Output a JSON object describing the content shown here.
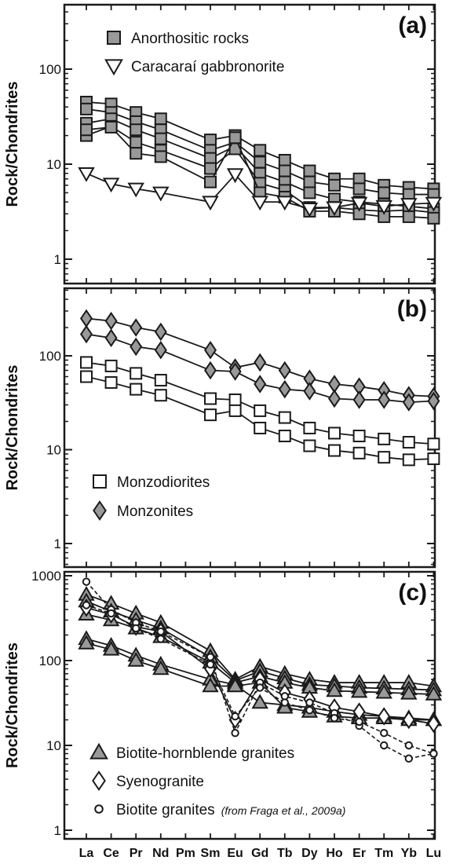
{
  "chart_data": [
    {
      "type": "line",
      "panel_label": "(a)",
      "ylabel": "Rock/Chondrites",
      "y_scale": "log",
      "ylim": [
        0.8,
        500
      ],
      "y_ticks": [
        {
          "value": 1,
          "label": "1"
        },
        {
          "value": 10,
          "label": "10"
        },
        {
          "value": 100,
          "label": "100"
        }
      ],
      "x_ticks_labeled": false,
      "legend_position": "top-left",
      "groups": [
        {
          "name": "Anorthositic rocks",
          "marker": "square",
          "fill": "#999999",
          "stroke": "#1a1a1a",
          "dashed": false,
          "series": [
            {
              "x": [
                "La",
                "Ce",
                "Pr",
                "Nd",
                "Sm",
                "Eu",
                "Gd",
                "Tb",
                "Dy",
                "Ho",
                "Er",
                "Tm",
                "Yb",
                "Lu"
              ],
              "values": [
                45,
                43,
                35,
                30,
                18,
                20,
                14,
                11,
                8.5,
                7,
                7,
                6,
                5.7,
                5.5
              ]
            },
            {
              "x": [
                "La",
                "Ce",
                "Pr",
                "Nd",
                "Sm",
                "Eu",
                "Gd",
                "Tb",
                "Dy",
                "Ho",
                "Er",
                "Tm",
                "Yb",
                "Lu"
              ],
              "values": [
                38,
                35,
                28,
                23,
                14,
                17,
                10.5,
                8.5,
                6.5,
                6,
                5.5,
                5,
                4.8,
                4.8
              ]
            },
            {
              "x": [
                "La",
                "Ce",
                "Pr",
                "Nd",
                "Sm",
                "Eu",
                "Gd",
                "Tb",
                "Dy",
                "Ho",
                "Er",
                "Tm",
                "Yb",
                "Lu"
              ],
              "values": [
                27,
                30,
                23,
                18.5,
                11.5,
                15.5,
                8,
                6.5,
                5,
                4.3,
                4,
                3.8,
                3.6,
                3.4
              ]
            },
            {
              "x": [
                "La",
                "Ce",
                "Pr",
                "Nd",
                "Sm",
                "Eu",
                "Gd",
                "Tb",
                "Dy",
                "Ho",
                "Er",
                "Tm",
                "Yb",
                "Lu"
              ],
              "values": [
                20,
                25,
                17,
                14,
                9,
                14.5,
                6.3,
                5.3,
                3.5,
                3.5,
                3.3,
                3.2,
                3.3,
                3.1
              ]
            },
            {
              "x": [
                "La",
                "Ce",
                "Pr",
                "Nd",
                "Sm",
                "Eu",
                "Gd",
                "Tb",
                "Dy",
                "Ho",
                "Er",
                "Tm",
                "Yb",
                "Lu"
              ],
              "values": [
                23,
                24.5,
                13,
                12,
                6.5,
                19,
                5,
                4.5,
                3.2,
                3.2,
                3,
                2.8,
                2.8,
                2.7
              ]
            }
          ]
        },
        {
          "name": "Caracaraí gabbronorite",
          "marker": "triangle-down",
          "fill": "#ffffff",
          "stroke": "#1a1a1a",
          "dashed": false,
          "series": [
            {
              "x": [
                "La",
                "Ce",
                "Pr",
                "Nd",
                "Sm",
                "Eu",
                "Gd",
                "Tb",
                "Dy",
                "Ho",
                "Er",
                "Tm",
                "Yb",
                "Lu"
              ],
              "values": [
                8,
                6.2,
                5.5,
                5,
                4,
                7.8,
                4,
                4,
                3.4,
                3.5,
                3.9,
                3.6,
                3.8,
                3.9
              ]
            }
          ]
        }
      ]
    },
    {
      "type": "line",
      "panel_label": "(b)",
      "ylabel": "Rock/Chondrites",
      "y_scale": "log",
      "ylim": [
        0.8,
        350
      ],
      "y_ticks": [
        {
          "value": 1,
          "label": "1"
        },
        {
          "value": 10,
          "label": "10"
        },
        {
          "value": 100,
          "label": "100"
        }
      ],
      "x_ticks_labeled": false,
      "legend_position": "bottom-left",
      "groups": [
        {
          "name": "Monzodiorites",
          "marker": "square",
          "fill": "#ffffff",
          "stroke": "#1a1a1a",
          "dashed": false,
          "series": [
            {
              "x": [
                "La",
                "Ce",
                "Pr",
                "Nd",
                "Sm",
                "Eu",
                "Gd",
                "Tb",
                "Dy",
                "Ho",
                "Er",
                "Tm",
                "Yb",
                "Lu"
              ],
              "values": [
                85,
                78,
                65,
                55,
                35,
                34,
                26,
                22,
                17,
                15,
                14,
                13,
                12,
                11.5
              ]
            },
            {
              "x": [
                "La",
                "Ce",
                "Pr",
                "Nd",
                "Sm",
                "Eu",
                "Gd",
                "Tb",
                "Dy",
                "Ho",
                "Er",
                "Tm",
                "Yb",
                "Lu"
              ],
              "values": [
                60,
                52,
                44,
                38,
                23.5,
                26,
                17,
                14,
                11,
                9.8,
                9.2,
                8.3,
                7.8,
                8
              ]
            }
          ]
        },
        {
          "name": "Monzonites",
          "marker": "diamond",
          "fill": "#999999",
          "stroke": "#1a1a1a",
          "dashed": false,
          "series": [
            {
              "x": [
                "La",
                "Ce",
                "Pr",
                "Nd",
                "Sm",
                "Eu",
                "Gd",
                "Tb",
                "Dy",
                "Ho",
                "Er",
                "Tm",
                "Yb",
                "Lu"
              ],
              "values": [
                250,
                235,
                200,
                180,
                115,
                75,
                85,
                70,
                57,
                50,
                47,
                43,
                38,
                37
              ]
            },
            {
              "x": [
                "La",
                "Ce",
                "Pr",
                "Nd",
                "Sm",
                "Eu",
                "Gd",
                "Tb",
                "Dy",
                "Ho",
                "Er",
                "Tm",
                "Yb",
                "Lu"
              ],
              "values": [
                170,
                155,
                125,
                115,
                70,
                68,
                50,
                44,
                42,
                35,
                34,
                34,
                32,
                33
              ]
            }
          ]
        }
      ]
    },
    {
      "type": "line",
      "panel_label": "(c)",
      "ylabel": "Rock/Chondrites",
      "y_scale": "log",
      "ylim": [
        0.8,
        1000
      ],
      "y_ticks": [
        {
          "value": 1,
          "label": "1"
        },
        {
          "value": 10,
          "label": "10"
        },
        {
          "value": 100,
          "label": "100"
        },
        {
          "value": 1000,
          "label": "1000"
        }
      ],
      "x_ticks_labeled": true,
      "categories": [
        "La",
        "Ce",
        "Pr",
        "Nd",
        "Pm",
        "Sm",
        "Eu",
        "Gd",
        "Tb",
        "Dy",
        "Ho",
        "Er",
        "Tm",
        "Yb",
        "Lu"
      ],
      "legend_position": "bottom-left",
      "groups": [
        {
          "name": "Biotite-hornblende granites",
          "marker": "triangle-up",
          "fill": "#999999",
          "stroke": "#1a1a1a",
          "dashed": false,
          "series": [
            {
              "x": [
                "La",
                "Ce",
                "Pr",
                "Nd",
                "Sm",
                "Eu",
                "Gd",
                "Tb",
                "Dy",
                "Ho",
                "Er",
                "Tm",
                "Yb",
                "Lu"
              ],
              "values": [
                600,
                470,
                360,
                280,
                130,
                60,
                85,
                70,
                60,
                55,
                55,
                55,
                55,
                50
              ]
            },
            {
              "x": [
                "La",
                "Ce",
                "Pr",
                "Nd",
                "Sm",
                "Eu",
                "Gd",
                "Tb",
                "Dy",
                "Ho",
                "Er",
                "Tm",
                "Yb",
                "Lu"
              ],
              "values": [
                500,
                380,
                300,
                240,
                110,
                58,
                75,
                62,
                52,
                50,
                48,
                47,
                46,
                45
              ]
            },
            {
              "x": [
                "La",
                "Ce",
                "Pr",
                "Nd",
                "Sm",
                "Eu",
                "Gd",
                "Tb",
                "Dy",
                "Ho",
                "Er",
                "Tm",
                "Yb",
                "Lu"
              ],
              "values": [
                350,
                300,
                240,
                190,
                95,
                55,
                65,
                55,
                48,
                44,
                43,
                42,
                41,
                40
              ]
            },
            {
              "x": [
                "La",
                "Ce",
                "Pr",
                "Nd",
                "Sm",
                "Eu",
                "Gd",
                "Tb",
                "Dy",
                "Ho",
                "Er",
                "Tm",
                "Yb",
                "Lu"
              ],
              "values": [
                180,
                150,
                115,
                90,
                60,
                52,
                32,
                30,
                28,
                25,
                23,
                22,
                21,
                20
              ]
            },
            {
              "x": [
                "La",
                "Ce",
                "Pr",
                "Nd",
                "Sm",
                "Eu",
                "Gd",
                "Tb",
                "Dy",
                "Ho",
                "Er",
                "Tm",
                "Yb",
                "Lu"
              ],
              "values": [
                160,
                135,
                100,
                80,
                50,
                50,
                55,
                28,
                25,
                22,
                21,
                21,
                20,
                20
              ]
            }
          ]
        },
        {
          "name": "Syenogranite",
          "marker": "diamond",
          "fill": "#ffffff",
          "stroke": "#1a1a1a",
          "dashed": false,
          "series": [
            {
              "x": [
                "La",
                "Ce",
                "Pr",
                "Nd",
                "Sm",
                "Eu",
                "Gd",
                "Tb",
                "Dy",
                "Ho",
                "Er",
                "Tm",
                "Yb",
                "Lu"
              ],
              "values": [
                420,
                350,
                250,
                220,
                80,
                20,
                60,
                42,
                35,
                28,
                25,
                22,
                20,
                18
              ]
            }
          ]
        },
        {
          "name": "Biotite granites",
          "note": "(from Fraga et al., 2009a)",
          "marker": "circle",
          "fill": "#ffffff",
          "stroke": "#1a1a1a",
          "dashed": true,
          "series": [
            {
              "x": [
                "La",
                "Ce",
                "Pr",
                "Nd",
                "Sm",
                "Eu",
                "Gd",
                "Tb",
                "Dy",
                "Ho",
                "Er",
                "Tm",
                "Yb",
                "Lu"
              ],
              "values": [
                850,
                400,
                280,
                220,
                110,
                14,
                55,
                38,
                32,
                24,
                17,
                10,
                7,
                8
              ]
            },
            {
              "x": [
                "La",
                "Ce",
                "Pr",
                "Nd",
                "Sm",
                "Eu",
                "Gd",
                "Tb",
                "Dy",
                "Ho",
                "Er",
                "Tm",
                "Yb",
                "Lu"
              ],
              "values": [
                450,
                360,
                240,
                180,
                90,
                22,
                48,
                32,
                26,
                21,
                19,
                14,
                10,
                8
              ]
            }
          ]
        }
      ]
    }
  ]
}
